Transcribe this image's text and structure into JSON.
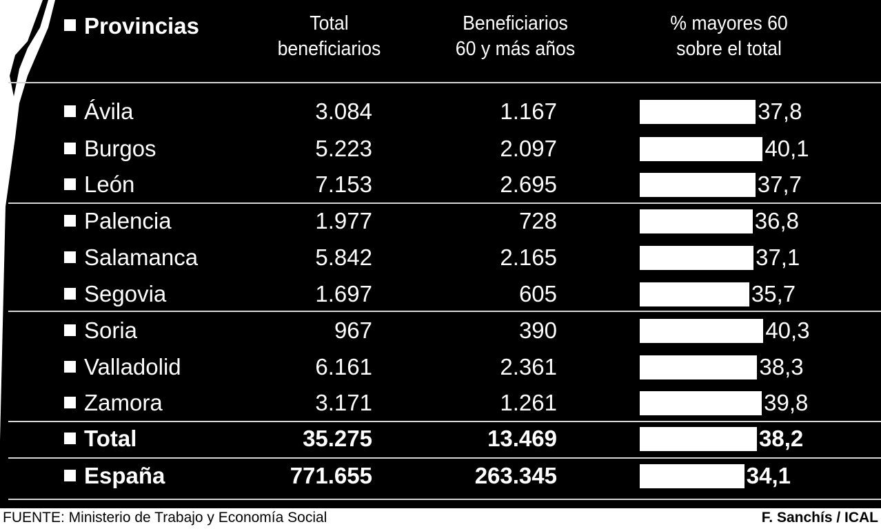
{
  "header": {
    "provinces": "Provincias",
    "total_line1": "Total",
    "total_line2": "beneficiarios",
    "over60_line1": "Beneficiarios",
    "over60_line2": "60 y más años",
    "pct_line1": "% mayores 60",
    "pct_line2": "sobre el total"
  },
  "chart_data": {
    "type": "table",
    "columns": [
      "Provincias",
      "Total beneficiarios",
      "Beneficiarios 60 y más años",
      "% mayores 60 sobre el total"
    ],
    "rows": [
      {
        "name": "Ávila",
        "total": "3.084",
        "over60": "1.167",
        "pct": "37,8",
        "pct_value": 37.8
      },
      {
        "name": "Burgos",
        "total": "5.223",
        "over60": "2.097",
        "pct": "40,1",
        "pct_value": 40.1
      },
      {
        "name": "León",
        "total": "7.153",
        "over60": "2.695",
        "pct": "37,7",
        "pct_value": 37.7
      },
      {
        "name": "Palencia",
        "total": "1.977",
        "over60": "728",
        "pct": "36,8",
        "pct_value": 36.8
      },
      {
        "name": "Salamanca",
        "total": "5.842",
        "over60": "2.165",
        "pct": "37,1",
        "pct_value": 37.1
      },
      {
        "name": "Segovia",
        "total": "1.697",
        "over60": "605",
        "pct": "35,7",
        "pct_value": 35.7
      },
      {
        "name": "Soria",
        "total": "967",
        "over60": "390",
        "pct": "40,3",
        "pct_value": 40.3
      },
      {
        "name": "Valladolid",
        "total": "6.161",
        "over60": "2.361",
        "pct": "38,3",
        "pct_value": 38.3
      },
      {
        "name": "Zamora",
        "total": "3.171",
        "over60": "1.261",
        "pct": "39,8",
        "pct_value": 39.8
      },
      {
        "name": "Total",
        "total": "35.275",
        "over60": "13.469",
        "pct": "38,2",
        "pct_value": 38.2,
        "bold": true
      },
      {
        "name": "España",
        "total": "771.655",
        "over60": "263.345",
        "pct": "34,1",
        "pct_value": 34.1,
        "bold": true
      }
    ]
  },
  "footer": {
    "source": "FUENTE: Ministerio de Trabajo y Economía Social",
    "credit": "F. Sanchís / ICAL"
  },
  "colors": {
    "background": "#000000",
    "text": "#ffffff",
    "bars": "#ffffff"
  }
}
